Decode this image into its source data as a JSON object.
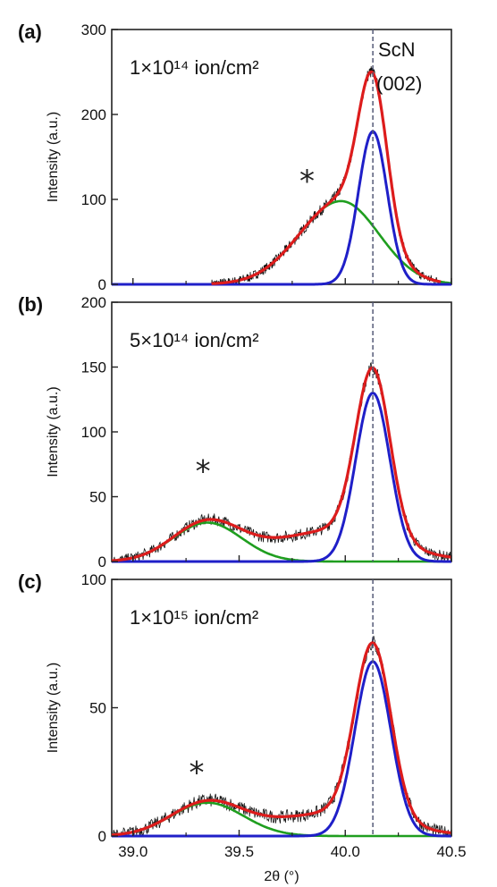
{
  "chart_data": [
    {
      "type": "line",
      "panel_label": "(a)",
      "dose_label": "1×10¹⁴ ion/cm²",
      "peak_label_line1": "ScN",
      "peak_label_line2": "(002)",
      "ylabel": "Intensity (a.u.)",
      "xlim": [
        38.9,
        40.5
      ],
      "ylim": [
        0,
        300
      ],
      "yticks": [
        "0",
        "100",
        "200",
        "300"
      ],
      "annotation": "*",
      "annotation_at": [
        39.82,
        122
      ],
      "reference_line_x": 40.13,
      "components": {
        "measured": {
          "color": "#111111",
          "from": 39.37,
          "to": 40.45,
          "noise": 8
        },
        "fit_total": {
          "color": "#dd1c1c",
          "from": 39.37,
          "to": 40.45
        },
        "peak_main": {
          "color": "#1f1fc8",
          "center": 40.13,
          "amplitude": 180,
          "fwhm": 0.16
        },
        "peak_secondary": {
          "color": "#1f9e1f",
          "center": 39.98,
          "amplitude": 98,
          "fwhm_left": 0.46,
          "fwhm_right": 0.42
        }
      }
    },
    {
      "type": "line",
      "panel_label": "(b)",
      "dose_label": "5×10¹⁴ ion/cm²",
      "ylabel": "Intensity (a.u.)",
      "xlim": [
        38.9,
        40.5
      ],
      "ylim": [
        0,
        200
      ],
      "yticks": [
        "0",
        "50",
        "100",
        "150",
        "200"
      ],
      "annotation": "*",
      "annotation_at": [
        39.33,
        70
      ],
      "reference_line_x": 40.13,
      "components": {
        "measured": {
          "color": "#111111",
          "from": 38.9,
          "to": 40.5,
          "noise": 6
        },
        "fit_total": {
          "color": "#dd1c1c",
          "from": 38.9,
          "to": 40.5
        },
        "peak_main": {
          "color": "#1f1fc8",
          "center": 40.13,
          "amplitude": 130,
          "fwhm": 0.19
        },
        "peak_secondary": {
          "color": "#1f9e1f",
          "center": 39.35,
          "amplitude": 30,
          "fwhm": 0.38
        },
        "broad_background": {
          "center": 39.95,
          "amplitude": 24,
          "fwhm": 0.65
        }
      }
    },
    {
      "type": "line",
      "panel_label": "(c)",
      "dose_label": "1×10¹⁵ ion/cm²",
      "ylabel": "Intensity (a.u.)",
      "xlabel": "2θ (°)",
      "xlim": [
        38.9,
        40.5
      ],
      "ylim": [
        0,
        100
      ],
      "yticks": [
        "0",
        "50",
        "100"
      ],
      "xticks": [
        "39.0",
        "39.5",
        "40.0",
        "40.5"
      ],
      "annotation": "*",
      "annotation_at": [
        39.3,
        25
      ],
      "reference_line_x": 40.13,
      "components": {
        "measured": {
          "color": "#111111",
          "from": 38.9,
          "to": 40.5,
          "noise": 3.5
        },
        "fit_total": {
          "color": "#dd1c1c",
          "from": 38.9,
          "to": 40.5
        },
        "peak_main": {
          "color": "#1f1fc8",
          "center": 40.13,
          "amplitude": 68,
          "fwhm": 0.2
        },
        "peak_secondary": {
          "color": "#1f9e1f",
          "center": 39.35,
          "amplitude": 13,
          "fwhm": 0.4
        },
        "broad_background": {
          "center": 39.95,
          "amplitude": 9,
          "fwhm": 0.65
        }
      }
    }
  ]
}
